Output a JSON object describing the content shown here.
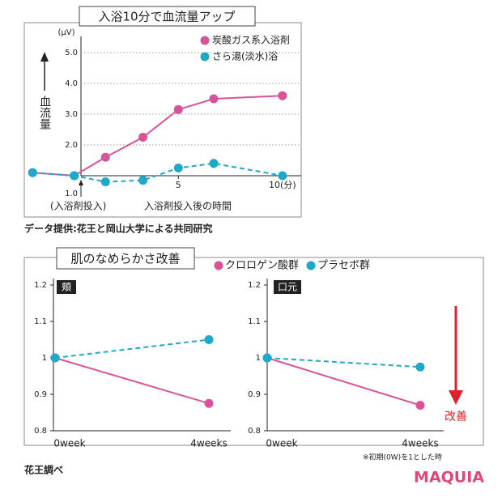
{
  "chart_data": [
    {
      "type": "line",
      "title": "入浴10分で血流量アップ",
      "y_unit": "(μV)",
      "y_label": "血流量",
      "annotations": [
        "(入浴剤投入)",
        "入浴剤投入後の時間"
      ],
      "x": [
        -2,
        0,
        1.5,
        3.3,
        5,
        6.7,
        10
      ],
      "xlim": [
        -2.4,
        10.9
      ],
      "xticks": [
        5,
        {
          "value": 10,
          "label": "10(分)"
        }
      ],
      "ylim": [
        1,
        5.5
      ],
      "yticks": [
        {
          "value": 1,
          "label": "1.0"
        },
        {
          "value": 2,
          "label": "2.0"
        },
        {
          "value": 3,
          "label": "3.0"
        },
        {
          "value": 4,
          "label": "4.0"
        },
        {
          "value": 5,
          "label": "5.0"
        }
      ],
      "grid": true,
      "series": [
        {
          "name": "炭酸ガス系入浴剤",
          "color": "#d9539b",
          "style": "solid",
          "values": [
            1.1,
            1.0,
            1.6,
            2.25,
            3.15,
            3.5,
            3.6
          ]
        },
        {
          "name": "さら湯(淡水)浴",
          "color": "#1fa9c9",
          "style": "dashed",
          "values": [
            1.1,
            1.0,
            0.8,
            0.85,
            1.25,
            1.4,
            1.0
          ]
        }
      ]
    },
    {
      "type": "line",
      "title": "頬",
      "categories": [
        "0week",
        "4weeks"
      ],
      "ylim": [
        0.8,
        1.2
      ],
      "yticks": [
        0.8,
        0.9,
        1,
        1.1,
        1.2
      ],
      "series": [
        {
          "name": "クロロゲン酸群",
          "color": "#d9539b",
          "style": "solid",
          "values": [
            1,
            0.875
          ]
        },
        {
          "name": "プラセボ群",
          "color": "#1fa9c9",
          "style": "dashed",
          "values": [
            1,
            1.05
          ]
        }
      ]
    },
    {
      "type": "line",
      "title": "口元",
      "categories": [
        "0week",
        "4weeks"
      ],
      "ylim": [
        0.8,
        1.2
      ],
      "yticks": [
        0.8,
        0.9,
        1,
        1.1,
        1.2
      ],
      "series": [
        {
          "name": "クロロゲン酸群",
          "color": "#d9539b",
          "style": "solid",
          "values": [
            1,
            0.87
          ]
        },
        {
          "name": "プラセボ群",
          "color": "#1fa9c9",
          "style": "dashed",
          "values": [
            1,
            0.975
          ]
        }
      ]
    }
  ],
  "figure2": {
    "title": "肌のなめらかさ改善",
    "note": "※初期(0W)を1とした時",
    "improvement": "改善"
  },
  "credits": {
    "source_1": "データ提供:花王と岡山大学による共同研究",
    "source_2": "花王調べ",
    "logo": "MAQUIA"
  }
}
